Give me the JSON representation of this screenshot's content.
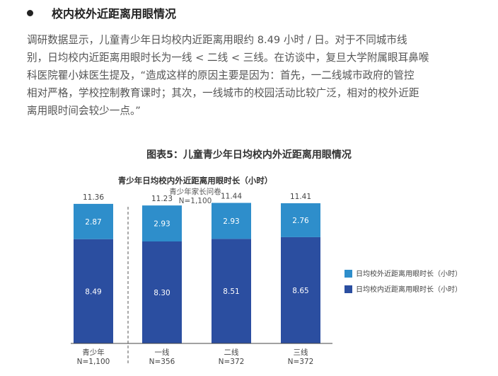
{
  "section": {
    "title": "校内校外近距离用眼情况",
    "paragraph_lines": [
      "调研数据显示，儿童青少年日均校内近距离用眼约 8.49 小时 / 日。对于不同城市线",
      "别，日均校内近距离用眼时长为一线 < 二线 < 三线。在访谈中，复旦大学附属眼耳鼻喉",
      "科医院瞿小妹医生提及，“造成这样的原因主要是因为：首先，一二线城市政府的管控",
      "相对严格，学校控制教育课时；其次，一线城市的校园活动比较广泛，相对的校外近距",
      "离用眼时间会较少一点。”"
    ]
  },
  "figure_title": "图表5：儿童青少年日均校内外近距离用眼情况",
  "chart_data": {
    "type": "bar",
    "stacked": true,
    "title": "青少年日均校内外近距离用眼时长（小时）",
    "subtitle": "青少年家长问卷",
    "sample_note": "N=1,100",
    "categories": [
      "青少年",
      "一线",
      "二线",
      "三线"
    ],
    "category_n": [
      "N=1,100",
      "N=356",
      "N=372",
      "N=372"
    ],
    "totals": [
      11.36,
      11.23,
      11.44,
      11.41
    ],
    "series": [
      {
        "name": "日均校内近距离用眼时长（小时）",
        "values": [
          8.49,
          8.3,
          8.51,
          8.65
        ],
        "color": "#2b4ea0"
      },
      {
        "name": "日均校外近距离用眼时长（小时）",
        "values": [
          2.87,
          2.93,
          2.93,
          2.76
        ],
        "color": "#2e8ecb"
      }
    ],
    "legend": "right",
    "grid": false,
    "separator_after_first": true
  }
}
